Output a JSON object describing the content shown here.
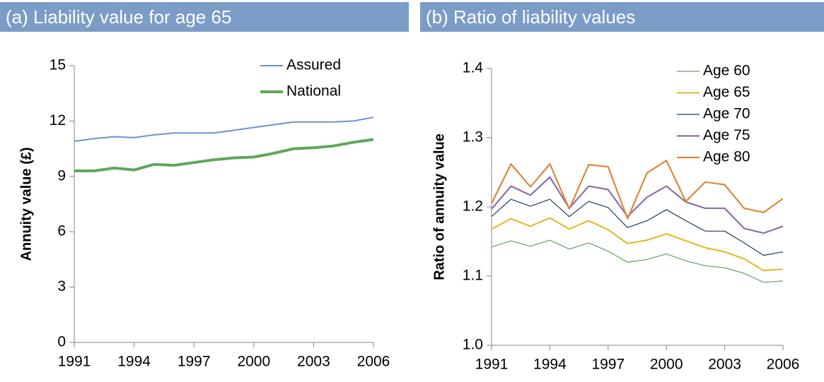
{
  "chart_data": [
    {
      "type": "line",
      "title": "(a) Liability value for age 65",
      "ylabel": "Annuity value (£)",
      "x": [
        1991,
        1992,
        1993,
        1994,
        1995,
        1996,
        1997,
        1998,
        1999,
        2000,
        2001,
        2002,
        2003,
        2004,
        2005,
        2006
      ],
      "xlim": [
        1991,
        2006
      ],
      "xticks": [
        1991,
        1994,
        1997,
        2000,
        2003,
        2006
      ],
      "ylim": [
        0,
        15
      ],
      "yticks": [
        0,
        3,
        6,
        9,
        12,
        15
      ],
      "legend": "upper right",
      "series": [
        {
          "name": "Assured",
          "color": "#6b93cf",
          "width": 2,
          "values": [
            10.9,
            11.05,
            11.15,
            11.1,
            11.25,
            11.35,
            11.35,
            11.35,
            11.5,
            11.65,
            11.8,
            11.95,
            11.95,
            11.95,
            12.0,
            12.2
          ]
        },
        {
          "name": "National",
          "color": "#5ea858",
          "width": 4,
          "values": [
            9.3,
            9.3,
            9.45,
            9.35,
            9.65,
            9.6,
            9.75,
            9.9,
            10.0,
            10.05,
            10.25,
            10.5,
            10.55,
            10.65,
            10.85,
            11.0
          ]
        }
      ]
    },
    {
      "type": "line",
      "title": "(b) Ratio of liability values",
      "ylabel": "Ratio of annuity value",
      "x": [
        1991,
        1992,
        1993,
        1994,
        1995,
        1996,
        1997,
        1998,
        1999,
        2000,
        2001,
        2002,
        2003,
        2004,
        2005,
        2006
      ],
      "xlim": [
        1991,
        2006
      ],
      "xticks": [
        1991,
        1994,
        1997,
        2000,
        2003,
        2006
      ],
      "ylim": [
        1.0,
        1.4
      ],
      "yticks": [
        {
          "value": 1.0,
          "label": "1.0"
        },
        1.1,
        1.2,
        1.3,
        1.4
      ],
      "legend": "upper right",
      "series": [
        {
          "name": "Age 60",
          "color": "#5aa55a",
          "width": 1.2,
          "values": [
            1.142,
            1.151,
            1.143,
            1.152,
            1.139,
            1.148,
            1.136,
            1.12,
            1.124,
            1.132,
            1.122,
            1.115,
            1.112,
            1.104,
            1.091,
            1.093
          ]
        },
        {
          "name": "Age 65",
          "color": "#e5b422",
          "width": 2,
          "values": [
            1.168,
            1.183,
            1.172,
            1.184,
            1.168,
            1.18,
            1.167,
            1.147,
            1.152,
            1.161,
            1.151,
            1.141,
            1.135,
            1.125,
            1.108,
            1.11
          ]
        },
        {
          "name": "Age 70",
          "color": "#1f3b5c",
          "width": 1.2,
          "values": [
            1.186,
            1.211,
            1.201,
            1.211,
            1.186,
            1.208,
            1.199,
            1.17,
            1.18,
            1.196,
            1.18,
            1.165,
            1.165,
            1.148,
            1.13,
            1.135
          ]
        },
        {
          "name": "Age 75",
          "color": "#8a6fa8",
          "width": 2.2,
          "values": [
            1.197,
            1.23,
            1.217,
            1.243,
            1.198,
            1.23,
            1.225,
            1.186,
            1.214,
            1.23,
            1.207,
            1.198,
            1.198,
            1.169,
            1.162,
            1.172
          ]
        },
        {
          "name": "Age 80",
          "color": "#d9883a",
          "width": 2.2,
          "values": [
            1.205,
            1.262,
            1.229,
            1.262,
            1.197,
            1.261,
            1.258,
            1.183,
            1.249,
            1.267,
            1.208,
            1.236,
            1.232,
            1.198,
            1.192,
            1.212
          ]
        }
      ]
    }
  ]
}
